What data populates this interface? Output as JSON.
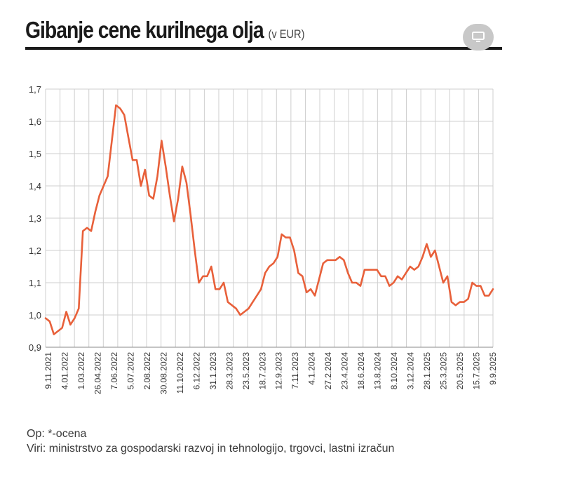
{
  "header": {
    "title": "Gibanje cene kurilnega olja",
    "unit": "(v EUR)"
  },
  "toolbar": {
    "fullscreen_icon": "monitor-icon"
  },
  "footer": {
    "note": "Op: *-ocena",
    "sources": "Viri: ministrstvo za gospodarski razvoj in tehnologijo, trgovci, lastni izračun"
  },
  "colors": {
    "line": "#e8603a",
    "grid": "#cfcfcf",
    "text": "#333333"
  },
  "chart_data": {
    "type": "line",
    "ylim": [
      0.9,
      1.7
    ],
    "yticks": [
      "0,9",
      "1,0",
      "1,1",
      "1,2",
      "1,3",
      "1,4",
      "1,5",
      "1,6",
      "1,7"
    ],
    "grid": "vertical and horizontal",
    "xticklabels": [
      "9.11.2021",
      "4.01.2022",
      "1.03.2022",
      "26.04.2022",
      "7.06.2022",
      "5.07.2022",
      "2.08.2022",
      "30.08.2022",
      "11.10.2022",
      "6.12.2022",
      "31.1.2023",
      "28.3.2023",
      "23.5.2023",
      "18.7.2023",
      "12.9.2023",
      "7.11.2023",
      "4.1.2024",
      "27.2.2024",
      "23.4.2024",
      "18.6.2024",
      "13.8.2024",
      "8.10.2024",
      "3.12.2024",
      "28.1.2025",
      "25.3.2025",
      "20.5.2025",
      "15.7.2025",
      "9.9.2025"
    ],
    "values": [
      0.99,
      0.98,
      0.94,
      0.95,
      0.96,
      1.01,
      0.97,
      0.99,
      1.02,
      1.26,
      1.27,
      1.26,
      1.32,
      1.37,
      1.4,
      1.43,
      1.54,
      1.65,
      1.64,
      1.62,
      1.55,
      1.48,
      1.48,
      1.4,
      1.45,
      1.37,
      1.36,
      1.43,
      1.54,
      1.46,
      1.37,
      1.29,
      1.36,
      1.46,
      1.41,
      1.31,
      1.2,
      1.1,
      1.12,
      1.12,
      1.15,
      1.08,
      1.08,
      1.1,
      1.04,
      1.03,
      1.02,
      1.0,
      1.01,
      1.02,
      1.04,
      1.06,
      1.08,
      1.13,
      1.15,
      1.16,
      1.18,
      1.25,
      1.24,
      1.24,
      1.2,
      1.13,
      1.12,
      1.07,
      1.08,
      1.06,
      1.11,
      1.16,
      1.17,
      1.17,
      1.17,
      1.18,
      1.17,
      1.13,
      1.1,
      1.1,
      1.09,
      1.14,
      1.14,
      1.14,
      1.14,
      1.12,
      1.12,
      1.09,
      1.1,
      1.12,
      1.11,
      1.13,
      1.15,
      1.14,
      1.15,
      1.18,
      1.22,
      1.18,
      1.2,
      1.15,
      1.1,
      1.12,
      1.04,
      1.03,
      1.04,
      1.04,
      1.05,
      1.1,
      1.09,
      1.09,
      1.06,
      1.06,
      1.08
    ]
  }
}
